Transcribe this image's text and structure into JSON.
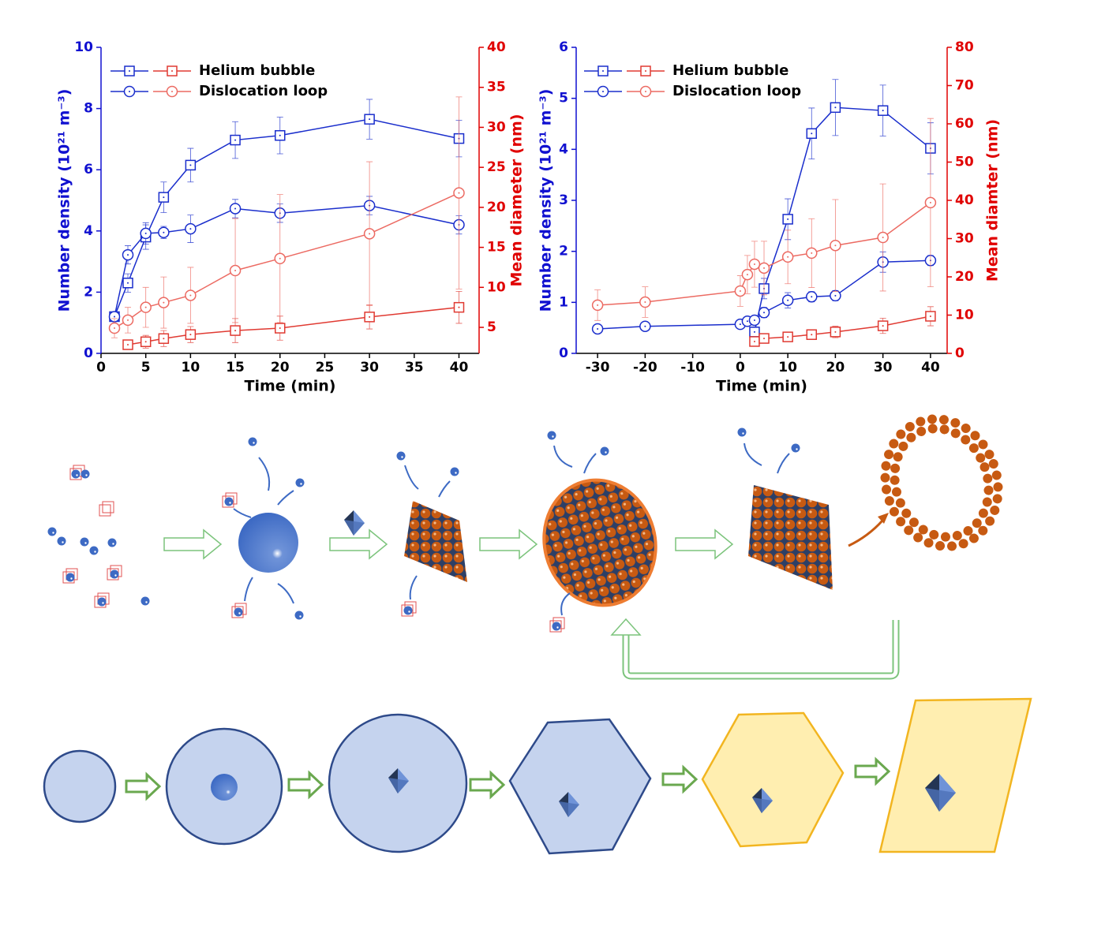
{
  "chart_data": [
    {
      "type": "line",
      "x_label": "Time (min)",
      "y_label": "Number density (10²¹ m⁻³)",
      "y2_label": "Mean diameter (nm)",
      "xlim": [
        0,
        42.25
      ],
      "xticks": [
        0,
        5,
        10,
        15,
        20,
        25,
        30,
        35,
        40
      ],
      "ylim": [
        0,
        10
      ],
      "yticks": [
        0,
        2,
        4,
        6,
        8,
        10
      ],
      "y2lim": [
        1.75,
        40
      ],
      "y2ticks": [
        5,
        10,
        15,
        20,
        25,
        30,
        35,
        40
      ],
      "series": [
        {
          "name": "Helium bubble",
          "color": "#1a2ecc",
          "marker": "square",
          "x": [
            1.5,
            3,
            5,
            7,
            10,
            15,
            20,
            30,
            40
          ],
          "values": [
            1.2,
            2.3,
            3.8,
            5.1,
            6.15,
            6.97,
            7.12,
            7.65,
            7.02
          ],
          "errors": [
            0.1,
            0.3,
            0.4,
            0.5,
            0.55,
            0.6,
            0.6,
            0.65,
            0.6
          ]
        },
        {
          "name": "Dislocation loop",
          "color": "#1a2ecc",
          "marker": "circle",
          "x": [
            1.5,
            3,
            5,
            7,
            10,
            15,
            20,
            30,
            40
          ],
          "values": [
            1.2,
            3.22,
            3.92,
            3.95,
            4.07,
            4.73,
            4.58,
            4.83,
            4.2
          ],
          "errors": [
            0.1,
            0.3,
            0.35,
            0.2,
            0.45,
            0.3,
            0.3,
            0.3,
            0.3
          ]
        },
        {
          "name": "Helium bubble",
          "color": "#e03a32",
          "marker": "square",
          "axis": "y2",
          "x": [
            3,
            5,
            7,
            10,
            15,
            20,
            30,
            40
          ],
          "values": [
            2.83,
            3.2,
            3.6,
            4.1,
            4.6,
            4.9,
            6.3,
            7.5
          ],
          "errors": [
            0.5,
            0.8,
            1,
            1,
            1.5,
            1.5,
            1.5,
            2
          ]
        },
        {
          "name": "Dislocation loop",
          "color": "#ec6a62",
          "marker": "circle",
          "axis": "y2",
          "x": [
            1.5,
            3,
            5,
            7,
            10,
            15,
            20,
            30,
            40
          ],
          "values": [
            4.9,
            5.9,
            7.5,
            8.1,
            9.0,
            12.1,
            13.6,
            16.7,
            21.8
          ],
          "errors": [
            1.2,
            1.6,
            2.5,
            3.2,
            3.5,
            6.5,
            8,
            9,
            12
          ]
        }
      ]
    },
    {
      "type": "line",
      "x_label": "Time (min)",
      "y_label": "Number density (10²¹ m⁻³)",
      "y2_label": "Mean diamter (nm)",
      "xlim": [
        -34.5,
        43.5
      ],
      "xticks": [
        -30,
        -20,
        -10,
        0,
        10,
        20,
        30,
        40
      ],
      "ylim": [
        0,
        6
      ],
      "yticks": [
        0,
        1,
        2,
        3,
        4,
        5,
        6
      ],
      "y2lim": [
        0,
        80
      ],
      "y2ticks": [
        0,
        10,
        20,
        30,
        40,
        50,
        60,
        70,
        80
      ],
      "series": [
        {
          "name": "Helium bubble",
          "color": "#1a2ecc",
          "marker": "square",
          "x": [
            3,
            5,
            10,
            15,
            20,
            30,
            40
          ],
          "values": [
            0.42,
            1.27,
            2.63,
            4.31,
            4.82,
            4.76,
            4.02
          ],
          "errors": [
            0.1,
            0.2,
            0.4,
            0.5,
            0.55,
            0.5,
            0.5
          ]
        },
        {
          "name": "Dislocation loop",
          "color": "#1a2ecc",
          "marker": "circle",
          "x": [
            -30,
            -20,
            0,
            1.5,
            3,
            5,
            10,
            15,
            20,
            30,
            40
          ],
          "values": [
            0.48,
            0.53,
            0.57,
            0.63,
            0.65,
            0.8,
            1.04,
            1.11,
            1.13,
            1.79,
            1.82
          ],
          "errors": [
            0.05,
            0.05,
            0.05,
            0.05,
            0.05,
            0.1,
            0.15,
            0.1,
            0.1,
            0.2,
            0.1
          ]
        },
        {
          "name": "Helium bubble",
          "color": "#e03a32",
          "marker": "square",
          "axis": "y2",
          "x": [
            3,
            5,
            10,
            15,
            20,
            30,
            40
          ],
          "values": [
            3.1,
            3.9,
            4.3,
            4.9,
            5.6,
            7.2,
            9.7
          ],
          "errors": [
            1,
            1,
            1,
            1,
            1.5,
            2,
            2.5
          ]
        },
        {
          "name": "Dislocation loop",
          "color": "#ec6a62",
          "marker": "circle",
          "axis": "y2",
          "x": [
            -30,
            -20,
            0,
            1.5,
            3,
            5,
            10,
            15,
            20,
            30,
            40
          ],
          "values": [
            12.6,
            13.4,
            16.3,
            20.6,
            23.3,
            22.3,
            25.2,
            26.2,
            28.2,
            30.3,
            39.4
          ],
          "errors": [
            4,
            4,
            4,
            5,
            6,
            7,
            7,
            9,
            12,
            14,
            22
          ]
        }
      ]
    }
  ]
}
